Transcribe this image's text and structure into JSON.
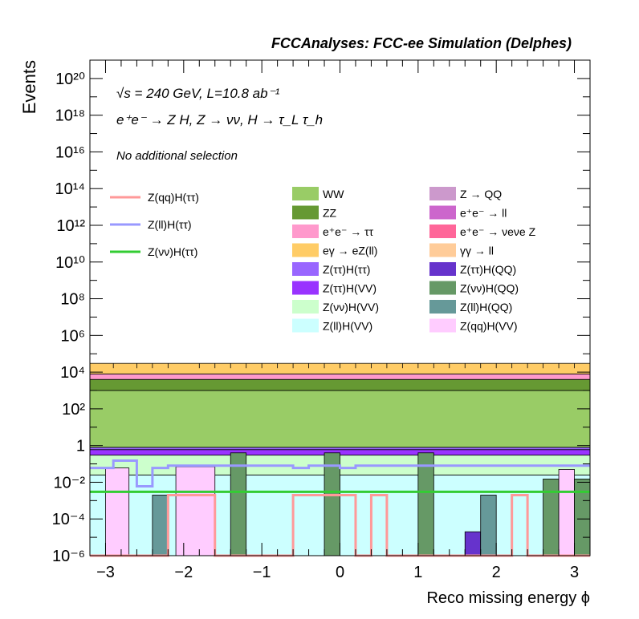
{
  "chart_data": {
    "type": "stacked-histogram",
    "header": "FCCAnalyses: FCC-ee Simulation (Delphes)",
    "annotations": {
      "energy_lumi": "√s = 240 GeV, L=10.8 ab⁻¹",
      "process": "e⁺e⁻ → Z H, Z → νν, H → τ_L τ_h",
      "selection": "No additional selection"
    },
    "xlabel": "Reco missing energy ϕ",
    "ylabel": "Events",
    "xlim": [
      -3.2,
      3.2
    ],
    "ylim": [
      1e-06,
      1e+21
    ],
    "ylog": true,
    "x_ticks": [
      "−3",
      "−2",
      "−1",
      "0",
      "1",
      "2",
      "3"
    ],
    "y_ticks": [
      "10⁻⁶",
      "10⁻⁴",
      "10⁻²",
      "1",
      "10²",
      "10⁴",
      "10⁶",
      "10⁸",
      "10¹⁰",
      "10¹²",
      "10¹⁴",
      "10¹⁶",
      "10¹⁸",
      "10²⁰"
    ],
    "bin_edges": [
      -3.2,
      -2.9,
      -2.6,
      -2.4,
      -2.2,
      -1.8,
      -1.6,
      -1.4,
      -1.2,
      -1.0,
      -0.8,
      -0.6,
      -0.4,
      -0.2,
      0.0,
      0.2,
      0.4,
      0.6,
      0.8,
      1.0,
      1.2,
      1.4,
      1.6,
      1.8,
      2.0,
      2.2,
      2.4,
      2.6,
      2.8,
      3.0,
      3.2
    ],
    "stack_cumulative_levels": [
      {
        "name": "Z(ll)H(VV)",
        "value": 0.025
      },
      {
        "name": "Z(νν)H(VV)",
        "value": 0.3
      },
      {
        "name": "Z(ττ)H(VV)",
        "value": 0.6
      },
      {
        "name": "Z(ττ)H(ττ)",
        "value": 0.8
      },
      {
        "name": "WW",
        "value": 1000
      },
      {
        "name": "ZZ",
        "value": 4000
      },
      {
        "name": "e⁺e⁻ → ττ",
        "value": 8000
      },
      {
        "name": "eγ → eZ(ll)",
        "value": 30000
      }
    ],
    "stack_layers_legend": [
      {
        "name": "WW",
        "color": "#99cc66"
      },
      {
        "name": "Z → QQ",
        "color": "#cc99cc"
      },
      {
        "name": "ZZ",
        "color": "#669933"
      },
      {
        "name": "e⁺e⁻ → ll",
        "color": "#cc66cc"
      },
      {
        "name": "e⁺e⁻ → ττ",
        "color": "#ff99cc"
      },
      {
        "name": "e⁺e⁻ → νeνe Z",
        "color": "#ff6699"
      },
      {
        "name": "eγ → eZ(ll)",
        "color": "#ffcc66"
      },
      {
        "name": "γγ → ll",
        "color": "#ffcc99"
      },
      {
        "name": "Z(ττ)H(ττ)",
        "color": "#9966ff"
      },
      {
        "name": "Z(ττ)H(QQ)",
        "color": "#6633cc"
      },
      {
        "name": "Z(ττ)H(VV)",
        "color": "#9933ff"
      },
      {
        "name": "Z(νν)H(QQ)",
        "color": "#669966"
      },
      {
        "name": "Z(νν)H(VV)",
        "color": "#ccffcc"
      },
      {
        "name": "Z(ll)H(QQ)",
        "color": "#669999"
      },
      {
        "name": "Z(ll)H(VV)",
        "color": "#ccffff"
      },
      {
        "name": "Z(qq)H(VV)",
        "color": "#ffccff"
      }
    ],
    "signal_lines": [
      {
        "name": "Z(qq)H(ττ)",
        "color": "#ff9999",
        "values": [
          1e-06,
          1e-06,
          1e-06,
          1e-06,
          0.002,
          0.002,
          1e-06,
          1e-06,
          1e-06,
          1e-06,
          1e-06,
          0.002,
          0.002,
          0.002,
          0.002,
          1e-06,
          0.002,
          1e-06,
          1e-06,
          1e-06,
          1e-06,
          1e-06,
          1e-06,
          1e-06,
          1e-06,
          0.002,
          1e-06,
          1e-06,
          1e-06,
          1e-06
        ]
      },
      {
        "name": "Z(ll)H(ττ)",
        "color": "#9999ff",
        "values": [
          0.06,
          0.15,
          0.006,
          0.06,
          0.08,
          0.08,
          0.08,
          0.08,
          0.08,
          0.08,
          0.08,
          0.06,
          0.08,
          0.08,
          0.06,
          0.08,
          0.08,
          0.08,
          0.08,
          0.08,
          0.08,
          0.08,
          0.08,
          0.08,
          0.08,
          0.08,
          0.08,
          0.08,
          0.08,
          0.08
        ]
      },
      {
        "name": "Z(νν)H(ττ)",
        "color": "#33cc33",
        "values": [
          0.003,
          0.003,
          0.003,
          0.003,
          0.003,
          0.003,
          0.003,
          0.003,
          0.003,
          0.003,
          0.003,
          0.003,
          0.003,
          0.003,
          0.003,
          0.003,
          0.003,
          0.003,
          0.003,
          0.003,
          0.003,
          0.003,
          0.003,
          0.003,
          0.003,
          0.003,
          0.003,
          0.003,
          0.003,
          0.003
        ]
      }
    ],
    "low_bars": [
      {
        "process": "Z(qq)H(VV)",
        "x": [
          -3.0,
          -2.7
        ],
        "value": 0.06
      },
      {
        "process": "Z(ll)H(QQ)",
        "x": [
          -2.4,
          -2.2
        ],
        "value": 0.002
      },
      {
        "process": "Z(qq)H(VV)",
        "x": [
          -2.1,
          -1.6
        ],
        "value": 0.07
      },
      {
        "process": "Z(νν)H(QQ)",
        "x": [
          -1.4,
          -1.2
        ],
        "value": 0.4
      },
      {
        "process": "Z(νν)H(QQ)",
        "x": [
          -0.2,
          0.0
        ],
        "value": 0.4
      },
      {
        "process": "Z(νν)H(QQ)",
        "x": [
          1.0,
          1.2
        ],
        "value": 0.4
      },
      {
        "process": "Z(ττ)H(QQ)",
        "x": [
          1.6,
          1.8
        ],
        "value": 2e-05
      },
      {
        "process": "Z(ll)H(QQ)",
        "x": [
          1.8,
          2.0
        ],
        "value": 0.002
      },
      {
        "process": "Z(νν)H(QQ)",
        "x": [
          2.6,
          2.8
        ],
        "value": 0.015
      },
      {
        "process": "Z(qq)H(VV)",
        "x": [
          2.8,
          3.0
        ],
        "value": 0.05
      },
      {
        "process": "Z(νν)H(QQ)",
        "x": [
          3.0,
          3.2
        ],
        "value": 0.015
      }
    ]
  }
}
